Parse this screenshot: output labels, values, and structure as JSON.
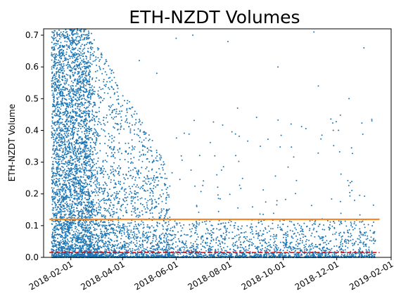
{
  "chart_data": {
    "type": "scatter",
    "title": "ETH-NZDT Volumes",
    "xlabel": "",
    "ylabel": "ETH-NZDT Volume",
    "xlim": [
      "2018-01-01",
      "2019-02-01"
    ],
    "ylim": [
      0,
      0.72
    ],
    "x_ticks": [
      "2018-02-01",
      "2018-04-01",
      "2018-06-01",
      "2018-08-01",
      "2018-10-01",
      "2018-12-01",
      "2019-02-01"
    ],
    "y_ticks": [
      "0.0",
      "0.1",
      "0.2",
      "0.3",
      "0.4",
      "0.5",
      "0.6",
      "0.7"
    ],
    "grid": false,
    "point_color": "#1f77b4",
    "mean_line": {
      "value": 0.12,
      "color": "#ff7f0e",
      "style": "solid"
    },
    "median_line": {
      "value": 0.015,
      "color": "#ff0000",
      "style": "dashed"
    },
    "data_range": [
      "2018-01-10",
      "2019-01-14"
    ],
    "density_profile": [
      {
        "period": [
          "2018-01-10",
          "2018-02-20"
        ],
        "y_max": 0.72,
        "density": "very high"
      },
      {
        "period": [
          "2018-02-20",
          "2018-05-20"
        ],
        "y_max": 0.72,
        "density": "high, declining"
      },
      {
        "period": [
          "2018-05-20",
          "2019-01-14"
        ],
        "y_max": 0.72,
        "density": "low, mostly below 0.1"
      }
    ],
    "sample_points": [
      {
        "x": "2018-06-01",
        "y": 0.69
      },
      {
        "x": "2018-06-20",
        "y": 0.7
      },
      {
        "x": "2018-07-30",
        "y": 0.68
      },
      {
        "x": "2018-09-25",
        "y": 0.6
      },
      {
        "x": "2018-11-05",
        "y": 0.71
      },
      {
        "x": "2018-11-10",
        "y": 0.54
      },
      {
        "x": "2019-01-01",
        "y": 0.66
      },
      {
        "x": "2018-10-10",
        "y": 0.42
      },
      {
        "x": "2018-11-27",
        "y": 0.4
      },
      {
        "x": "2019-01-10",
        "y": 0.43
      },
      {
        "x": "2018-08-10",
        "y": 0.47
      },
      {
        "x": "2018-07-15",
        "y": 0.32
      },
      {
        "x": "2018-09-05",
        "y": 0.35
      },
      {
        "x": "2018-12-15",
        "y": 0.5
      },
      {
        "x": "2018-05-10",
        "y": 0.58
      },
      {
        "x": "2018-04-20",
        "y": 0.62
      }
    ]
  }
}
